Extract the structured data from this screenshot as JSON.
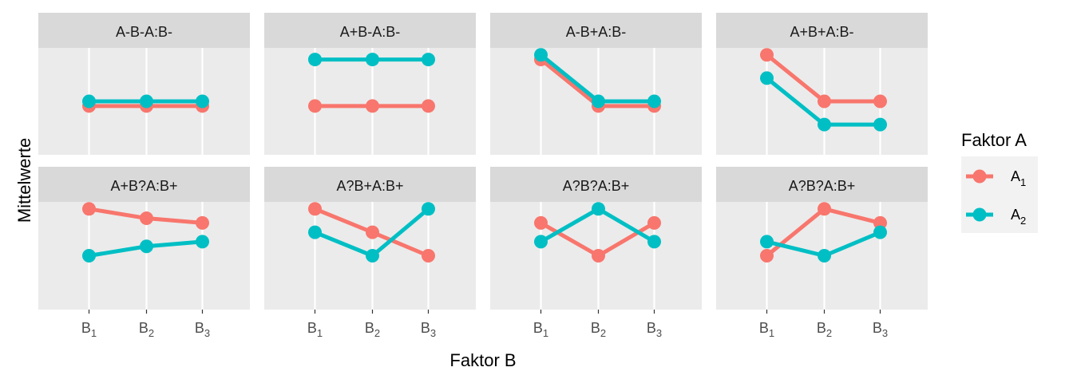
{
  "chart_data": {
    "type": "line",
    "ylabel": "Mittelwerte",
    "xlabel": "Faktor B",
    "x_categories": [
      {
        "base": "B",
        "sub": "1"
      },
      {
        "base": "B",
        "sub": "2"
      },
      {
        "base": "B",
        "sub": "3"
      }
    ],
    "ylim": [
      -1.1,
      3.5
    ],
    "grid": true,
    "legend": {
      "title": "Faktor A",
      "placement": "right",
      "entries": [
        {
          "key": "A1",
          "base": "A",
          "sub": "1"
        },
        {
          "key": "A2",
          "base": "A",
          "sub": "2"
        }
      ]
    },
    "colors": {
      "A1": "#F8766D",
      "A2": "#00BFC4",
      "panel_bg": "#EBEBEB",
      "strip_bg": "#D9D9D9"
    },
    "panels": [
      {
        "title": "A-B-A:B-",
        "A1": [
          1.0,
          1.0,
          1.0
        ],
        "A2": [
          1.2,
          1.2,
          1.2
        ]
      },
      {
        "title": "A+B-A:B-",
        "A1": [
          1.0,
          1.0,
          1.0
        ],
        "A2": [
          3.0,
          3.0,
          3.0
        ]
      },
      {
        "title": "A-B+A:B-",
        "A1": [
          3.0,
          1.0,
          1.0
        ],
        "A2": [
          3.2,
          1.2,
          1.2
        ]
      },
      {
        "title": "A+B+A:B-",
        "A1": [
          3.2,
          1.2,
          1.2
        ],
        "A2": [
          2.2,
          0.2,
          0.2
        ]
      },
      {
        "title": "A+B?A:B+",
        "A1": [
          3.2,
          2.8,
          2.6
        ],
        "A2": [
          1.2,
          1.6,
          1.8
        ]
      },
      {
        "title": "A?B+A:B+",
        "A1": [
          3.2,
          2.2,
          1.2
        ],
        "A2": [
          2.2,
          1.2,
          3.2
        ]
      },
      {
        "title": "A?B?A:B+",
        "A1": [
          2.6,
          1.2,
          2.6
        ],
        "A2": [
          1.8,
          3.2,
          1.8
        ]
      },
      {
        "title": "A?B?A:B+",
        "A1": [
          1.2,
          3.2,
          2.6
        ],
        "A2": [
          1.8,
          1.2,
          2.2
        ]
      }
    ]
  }
}
